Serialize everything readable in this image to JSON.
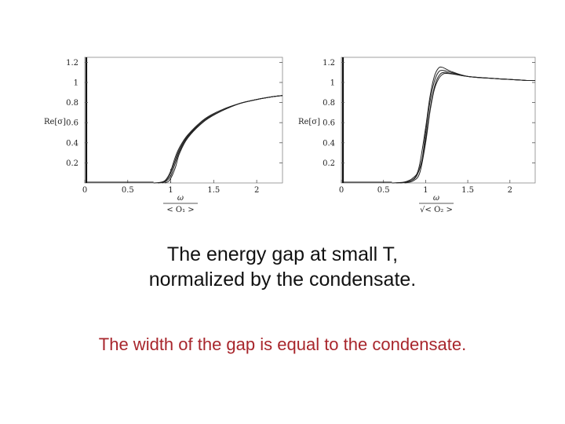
{
  "chart_data": [
    {
      "type": "line",
      "title": "",
      "ylabel": "Re[σ]",
      "xlabel_top": "ω",
      "xlabel_bottom": "< O₁ >",
      "xlim": [
        0,
        2.3
      ],
      "ylim": [
        0,
        1.25
      ],
      "xticks": [
        "0",
        "0.5",
        "1",
        "1.5",
        "2"
      ],
      "xtick_values": [
        0,
        0.5,
        1,
        1.5,
        2
      ],
      "yticks": [
        "0.2",
        "0.4",
        "0.6",
        "0.8",
        "1",
        "1.2"
      ],
      "ytick_values": [
        0.2,
        0.4,
        0.6,
        0.8,
        1.0,
        1.2
      ],
      "series": [
        {
          "x": [
            0.8,
            0.9,
            0.95,
            1.0,
            1.05,
            1.1,
            1.2,
            1.4,
            1.6,
            1.8,
            2.0,
            2.2,
            2.3
          ],
          "y": [
            0,
            0.01,
            0.04,
            0.12,
            0.25,
            0.35,
            0.48,
            0.64,
            0.73,
            0.79,
            0.83,
            0.86,
            0.87
          ]
        },
        {
          "x": [
            0.85,
            0.92,
            0.97,
            1.0,
            1.05,
            1.1,
            1.2,
            1.4,
            1.6,
            1.8,
            2.0,
            2.2,
            2.3
          ],
          "y": [
            0,
            0.01,
            0.05,
            0.1,
            0.22,
            0.33,
            0.47,
            0.63,
            0.72,
            0.79,
            0.83,
            0.86,
            0.87
          ]
        },
        {
          "x": [
            0.9,
            0.95,
            1.0,
            1.05,
            1.1,
            1.2,
            1.4,
            1.6,
            1.8,
            2.0,
            2.2,
            2.3
          ],
          "y": [
            0,
            0.02,
            0.07,
            0.19,
            0.31,
            0.46,
            0.63,
            0.72,
            0.79,
            0.83,
            0.86,
            0.87
          ]
        },
        {
          "x": [
            0.93,
            0.98,
            1.02,
            1.06,
            1.1,
            1.2,
            1.4,
            1.6,
            1.8,
            2.0,
            2.2,
            2.3
          ],
          "y": [
            0,
            0.02,
            0.08,
            0.17,
            0.29,
            0.45,
            0.62,
            0.72,
            0.79,
            0.83,
            0.86,
            0.87
          ]
        }
      ],
      "gap_marker_x": 1.0
    },
    {
      "type": "line",
      "title": "",
      "ylabel": "Re[σ]",
      "xlabel_top": "ω",
      "xlabel_bottom": "√< O₂ >",
      "xlim": [
        0,
        2.3
      ],
      "ylim": [
        0,
        1.25
      ],
      "xticks": [
        "0",
        "0.5",
        "1",
        "1.5",
        "2"
      ],
      "xtick_values": [
        0,
        0.5,
        1,
        1.5,
        2
      ],
      "yticks": [
        "0.2",
        "0.4",
        "0.6",
        "0.8",
        "1",
        "1.2"
      ],
      "ytick_values": [
        0.2,
        0.4,
        0.6,
        0.8,
        1.0,
        1.2
      ],
      "series": [
        {
          "x": [
            0.6,
            0.75,
            0.85,
            0.92,
            1.0,
            1.05,
            1.1,
            1.15,
            1.2,
            1.3,
            1.5,
            1.8,
            2.0,
            2.2,
            2.3
          ],
          "y": [
            0,
            0.01,
            0.05,
            0.15,
            0.55,
            0.85,
            1.05,
            1.14,
            1.15,
            1.11,
            1.06,
            1.04,
            1.03,
            1.02,
            1.02
          ]
        },
        {
          "x": [
            0.65,
            0.78,
            0.88,
            0.95,
            1.0,
            1.05,
            1.1,
            1.15,
            1.2,
            1.3,
            1.5,
            1.8,
            2.0,
            2.2,
            2.3
          ],
          "y": [
            0,
            0.01,
            0.06,
            0.2,
            0.5,
            0.8,
            1.0,
            1.1,
            1.12,
            1.1,
            1.06,
            1.04,
            1.03,
            1.02,
            1.02
          ]
        },
        {
          "x": [
            0.7,
            0.82,
            0.9,
            0.97,
            1.02,
            1.07,
            1.12,
            1.17,
            1.22,
            1.3,
            1.5,
            1.8,
            2.0,
            2.2,
            2.3
          ],
          "y": [
            0,
            0.02,
            0.08,
            0.28,
            0.55,
            0.82,
            1.0,
            1.08,
            1.1,
            1.09,
            1.06,
            1.04,
            1.03,
            1.02,
            1.02
          ]
        },
        {
          "x": [
            0.75,
            0.85,
            0.93,
            1.0,
            1.05,
            1.1,
            1.15,
            1.2,
            1.25,
            1.35,
            1.5,
            1.8,
            2.0,
            2.2,
            2.3
          ],
          "y": [
            0,
            0.02,
            0.1,
            0.4,
            0.7,
            0.92,
            1.03,
            1.08,
            1.09,
            1.08,
            1.06,
            1.04,
            1.03,
            1.02,
            1.02
          ]
        }
      ]
    }
  ],
  "captions": {
    "line1": "The energy gap at small T,",
    "line2": "normalized by the condensate.",
    "line3": "The width of the gap is equal to the condensate."
  }
}
